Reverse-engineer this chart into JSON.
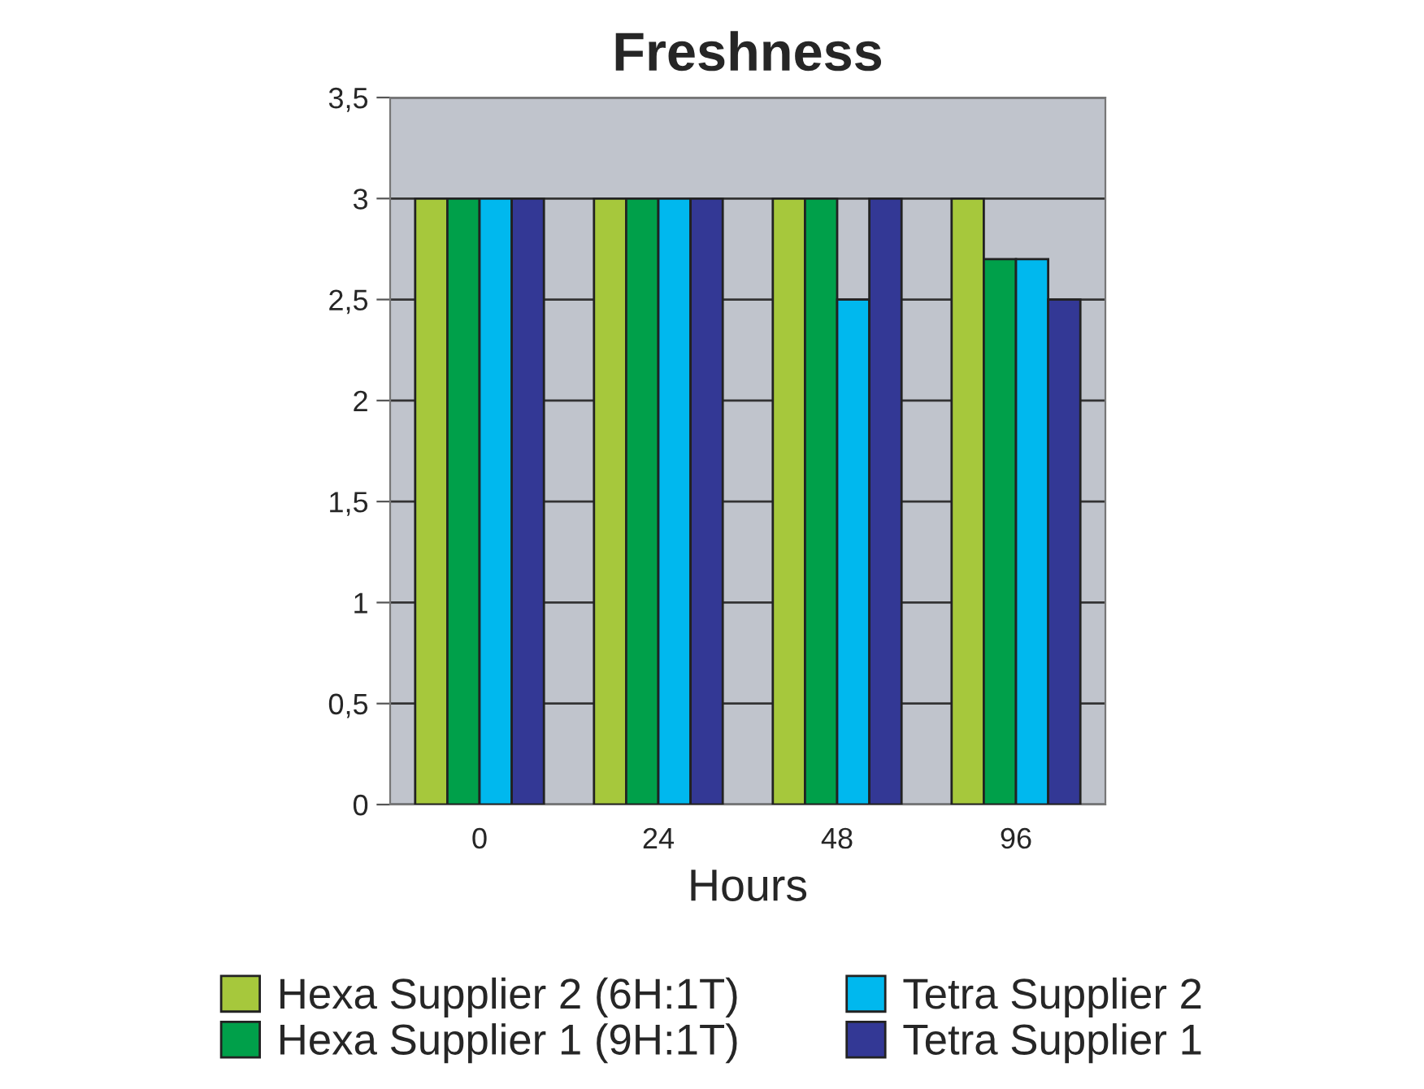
{
  "chart_data": {
    "type": "bar",
    "title": "Freshness",
    "xlabel": "Hours",
    "categories": [
      "0",
      "24",
      "48",
      "96"
    ],
    "series": [
      {
        "name": "Hexa Supplier 2 (6H:1T)",
        "color": "#a6c83c",
        "values": [
          3,
          3,
          3,
          3
        ]
      },
      {
        "name": "Hexa Supplier 1 (9H:1T)",
        "color": "#00a04a",
        "values": [
          3,
          3,
          3,
          2.7
        ]
      },
      {
        "name": "Tetra Supplier 2",
        "color": "#00b8ee",
        "values": [
          3,
          3,
          2.5,
          2.7
        ]
      },
      {
        "name": "Tetra Supplier 1",
        "color": "#333895",
        "values": [
          3,
          3,
          3,
          2.5
        ]
      }
    ],
    "ylim": [
      0,
      3.5
    ],
    "yticks": [
      0,
      {
        "value": 0.5,
        "label": "0,5"
      },
      1,
      {
        "value": 1.5,
        "label": "1,5"
      },
      2,
      {
        "value": 2.5,
        "label": "2,5"
      },
      3,
      {
        "value": 3.5,
        "label": "3,5"
      }
    ],
    "grid": "y",
    "legend": "bottom"
  }
}
